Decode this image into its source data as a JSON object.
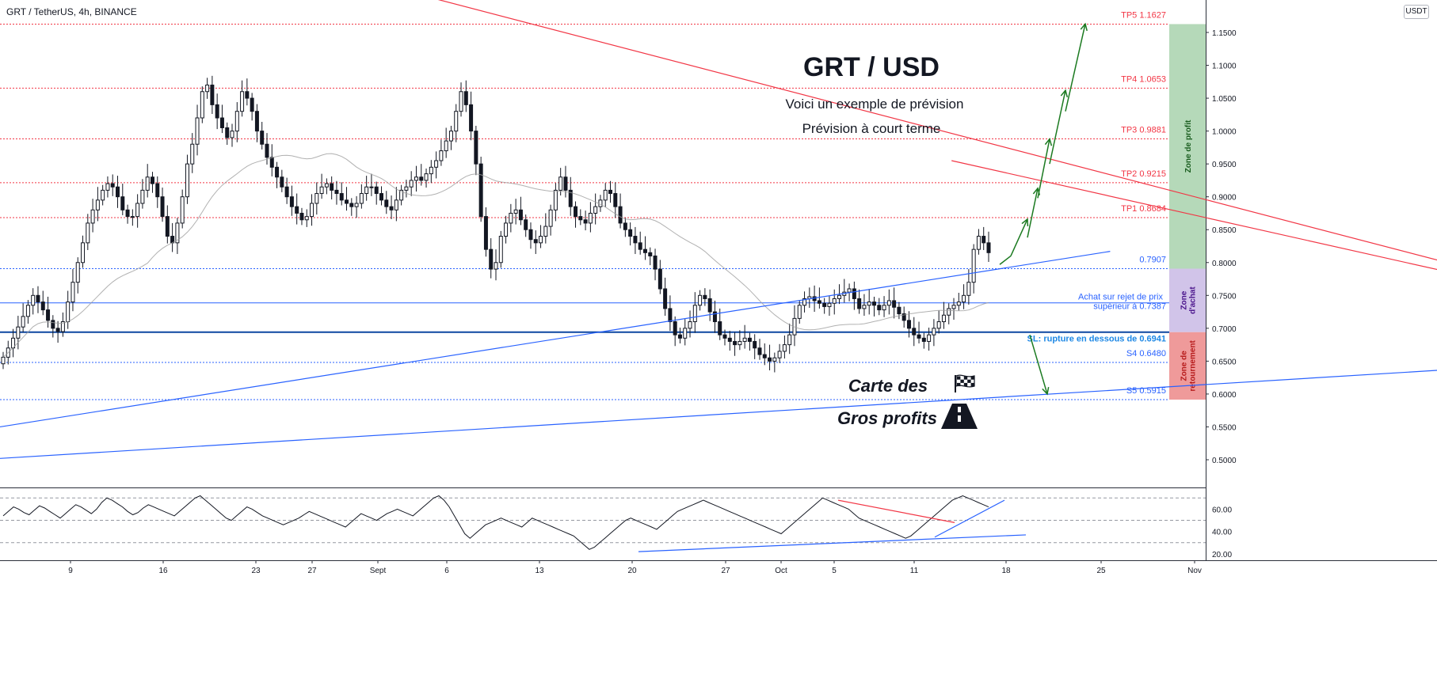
{
  "symbol": "GRT / TetherUS, 4h, BINANCE",
  "currency_button": "USDT",
  "chart_data": {
    "type": "candlestick",
    "title": "GRT / USD",
    "subtitle_1": "Voici un exemple de prévision",
    "subtitle_2": "Prévision à court terme",
    "ylim": [
      0.47,
      1.18
    ],
    "y_ticks": [
      "1.1500",
      "1.1000",
      "1.0500",
      "1.0000",
      "0.9500",
      "0.9000",
      "0.8500",
      "0.8000",
      "0.7500",
      "0.7000",
      "0.6500",
      "0.6000",
      "0.5500",
      "0.5000"
    ],
    "x_ticks": [
      "9",
      "16",
      "23",
      "27",
      "Sept",
      "6",
      "13",
      "20",
      "27",
      "Oct",
      "5",
      "11",
      "18",
      "25",
      "Nov"
    ],
    "levels": [
      {
        "label": "TP5 1.1627",
        "value": 1.1627,
        "color": "#f23645",
        "style": "dotted"
      },
      {
        "label": "TP4 1.0653",
        "value": 1.0653,
        "color": "#f23645",
        "style": "dotted"
      },
      {
        "label": "TP3 0.9881",
        "value": 0.9881,
        "color": "#f23645",
        "style": "dotted"
      },
      {
        "label": "TP2 0.9215",
        "value": 0.9215,
        "color": "#f23645",
        "style": "dotted"
      },
      {
        "label": "TP1 0.8684",
        "value": 0.8684,
        "color": "#f23645",
        "style": "dotted"
      },
      {
        "label": "0.7907",
        "value": 0.7907,
        "color": "#2962ff",
        "style": "dotted"
      },
      {
        "label": "Achat sur rejet de prix",
        "label2": "supérieur à  0.7387",
        "value": 0.7387,
        "color": "#2962ff",
        "style": "solid"
      },
      {
        "label": "SL: rupture en dessous de  0.6941",
        "value": 0.6941,
        "color": "#0d47a1",
        "style": "solid-thick"
      },
      {
        "label": "S4 0.6480",
        "value": 0.648,
        "color": "#2962ff",
        "style": "dotted"
      },
      {
        "label": "S5 0.5915",
        "value": 0.5915,
        "color": "#2962ff",
        "style": "dotted"
      }
    ],
    "zones": [
      {
        "label": "Zone de profit",
        "top": 1.1627,
        "bottom": 0.7907,
        "color": "#b5d9b9",
        "text_color": "#1b5e20"
      },
      {
        "label": "Zone d'achat",
        "top": 0.7907,
        "bottom": 0.6941,
        "color": "#d1c4e9",
        "text_color": "#4a148c"
      },
      {
        "label": "Zone de retournement",
        "top": 0.6941,
        "bottom": 0.5915,
        "color": "#ef9a9a",
        "text_color": "#b71c1c"
      }
    ],
    "trendlines": [
      {
        "color": "#f23645",
        "from": [
          "Aug 18",
          1.23
        ],
        "to": [
          "Oct 16",
          0.7
        ]
      },
      {
        "color": "#f23645",
        "from": [
          "Sep 13",
          0.955
        ],
        "to": [
          "Oct 16",
          0.7
        ]
      },
      {
        "color": "#2962ff",
        "from": [
          "Aug 2",
          0.55
        ],
        "to": [
          "Sep 20",
          0.817
        ]
      },
      {
        "color": "#2962ff",
        "from": [
          "Aug 2",
          0.502
        ],
        "to": [
          "Oct 21",
          0.671
        ]
      }
    ],
    "forecast_path": [
      0.8,
      0.856,
      0.913,
      0.986,
      1.062,
      1.16
    ],
    "sl_arrow": [
      0.69,
      0.6
    ],
    "series": [
      {
        "name": "GRT/USDT 4h (approx. close)",
        "close": [
          0.656,
          0.67,
          0.685,
          0.702,
          0.718,
          0.735,
          0.75,
          0.74,
          0.728,
          0.712,
          0.7,
          0.695,
          0.71,
          0.74,
          0.77,
          0.8,
          0.83,
          0.86,
          0.88,
          0.895,
          0.91,
          0.92,
          0.915,
          0.9,
          0.88,
          0.87,
          0.87,
          0.89,
          0.91,
          0.93,
          0.92,
          0.9,
          0.87,
          0.84,
          0.83,
          0.86,
          0.9,
          0.95,
          0.98,
          1.02,
          1.06,
          1.07,
          1.04,
          1.02,
          1.005,
          0.99,
          1.0,
          1.03,
          1.06,
          1.05,
          1.03,
          1.0,
          0.98,
          0.96,
          0.945,
          0.93,
          0.915,
          0.9,
          0.885,
          0.875,
          0.865,
          0.87,
          0.89,
          0.905,
          0.915,
          0.92,
          0.91,
          0.905,
          0.895,
          0.89,
          0.885,
          0.89,
          0.905,
          0.915,
          0.915,
          0.905,
          0.895,
          0.885,
          0.88,
          0.895,
          0.91,
          0.915,
          0.925,
          0.93,
          0.925,
          0.935,
          0.945,
          0.955,
          0.97,
          0.985,
          1.0,
          1.03,
          1.06,
          1.04,
          1.0,
          0.95,
          0.87,
          0.82,
          0.79,
          0.8,
          0.84,
          0.86,
          0.875,
          0.88,
          0.865,
          0.85,
          0.835,
          0.83,
          0.84,
          0.855,
          0.88,
          0.91,
          0.93,
          0.91,
          0.885,
          0.87,
          0.865,
          0.86,
          0.875,
          0.885,
          0.895,
          0.91,
          0.905,
          0.885,
          0.86,
          0.85,
          0.84,
          0.83,
          0.82,
          0.815,
          0.81,
          0.79,
          0.76,
          0.73,
          0.71,
          0.69,
          0.685,
          0.7,
          0.71,
          0.735,
          0.75,
          0.745,
          0.725,
          0.71,
          0.69,
          0.685,
          0.68,
          0.675,
          0.68,
          0.685,
          0.68,
          0.67,
          0.66,
          0.655,
          0.65,
          0.655,
          0.665,
          0.675,
          0.69,
          0.715,
          0.735,
          0.745,
          0.748,
          0.742,
          0.738,
          0.733,
          0.738,
          0.745,
          0.75,
          0.755,
          0.76,
          0.745,
          0.73,
          0.735,
          0.74,
          0.735,
          0.728,
          0.735,
          0.742,
          0.732,
          0.722,
          0.712,
          0.7,
          0.69,
          0.685,
          0.68,
          0.69,
          0.7,
          0.71,
          0.72,
          0.73,
          0.735,
          0.74,
          0.75,
          0.77,
          0.82,
          0.84,
          0.83,
          0.815
        ]
      }
    ],
    "ma_line": {
      "name": "moving average",
      "color": "#9e9e9e"
    },
    "rsi": {
      "ylim": [
        15,
        78
      ],
      "ticks": [
        "60.00",
        "40.00",
        "20.00"
      ],
      "values": [
        54,
        58,
        62,
        60,
        57,
        55,
        59,
        63,
        61,
        58,
        55,
        52,
        56,
        60,
        64,
        62,
        59,
        56,
        60,
        66,
        70,
        68,
        65,
        62,
        58,
        55,
        57,
        61,
        64,
        62,
        60,
        58,
        56,
        54,
        58,
        62,
        66,
        70,
        72,
        68,
        64,
        60,
        56,
        52,
        50,
        54,
        58,
        62,
        60,
        57,
        54,
        52,
        50,
        48,
        46,
        48,
        50,
        52,
        55,
        58,
        56,
        54,
        52,
        50,
        48,
        46,
        44,
        48,
        52,
        56,
        54,
        52,
        50,
        53,
        56,
        58,
        60,
        58,
        56,
        54,
        58,
        62,
        66,
        70,
        72,
        68,
        62,
        54,
        46,
        38,
        34,
        38,
        42,
        46,
        48,
        50,
        52,
        50,
        48,
        46,
        44,
        48,
        52,
        50,
        48,
        46,
        44,
        42,
        40,
        38,
        36,
        32,
        28,
        24,
        26,
        30,
        34,
        38,
        42,
        46,
        50,
        52,
        50,
        48,
        46,
        44,
        42,
        46,
        50,
        54,
        58,
        60,
        62,
        64,
        66,
        68,
        66,
        64,
        62,
        60,
        58,
        56,
        54,
        52,
        50,
        48,
        46,
        44,
        42,
        40,
        38,
        42,
        46,
        50,
        54,
        58,
        62,
        66,
        70,
        68,
        66,
        64,
        62,
        60,
        56,
        52,
        50,
        48,
        46,
        44,
        42,
        40,
        38,
        36,
        34,
        36,
        40,
        44,
        48,
        52,
        56,
        60,
        64,
        68,
        70,
        72,
        70,
        68,
        66,
        64,
        62
      ]
    }
  }
}
